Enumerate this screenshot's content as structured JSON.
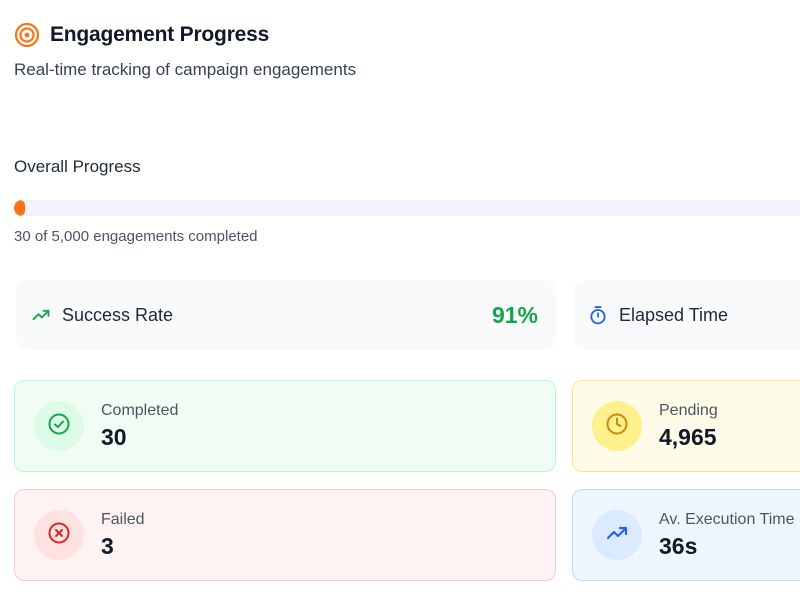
{
  "header": {
    "title": "Engagement Progress",
    "subtitle": "Real-time tracking of campaign engagements",
    "icon": "target-icon",
    "accent_color": "#f97316"
  },
  "progress": {
    "label": "Overall Progress",
    "completed": 30,
    "total": 5000,
    "fraction": 0.006,
    "caption": "30 of 5,000 engagements completed",
    "color": "#f97316"
  },
  "metrics": {
    "success_rate": {
      "label": "Success Rate",
      "value": "91%",
      "icon": "trending-up-icon",
      "color": "#16a34a"
    },
    "elapsed_time": {
      "label": "Elapsed Time",
      "icon": "stopwatch-icon",
      "color": "#2563eb"
    }
  },
  "stats": {
    "completed": {
      "label": "Completed",
      "value": "30",
      "icon": "check-circle-icon",
      "color": "#16a34a"
    },
    "pending": {
      "label": "Pending",
      "value": "4,965",
      "icon": "clock-icon",
      "color": "#ca8a04"
    },
    "failed": {
      "label": "Failed",
      "value": "3",
      "icon": "x-circle-icon",
      "color": "#dc2626"
    },
    "avg_execution": {
      "label": "Av. Execution Time",
      "value": "36s",
      "icon": "trending-up-icon",
      "color": "#2563eb"
    }
  }
}
